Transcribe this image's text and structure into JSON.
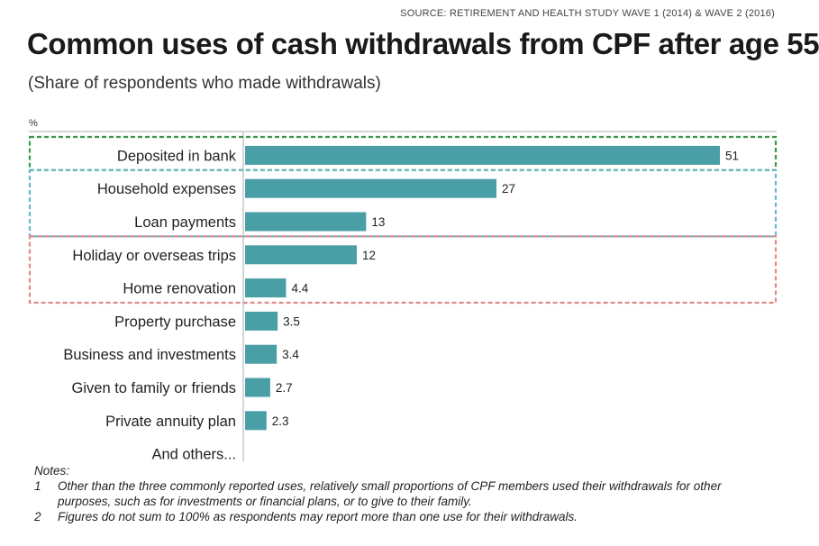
{
  "source": "SOURCE: RETIREMENT AND HEALTH STUDY WAVE 1 (2014) & WAVE 2 (2016)",
  "title": "Common uses of cash withdrawals from CPF after age 55",
  "subtitle": "(Share of respondents who made withdrawals)",
  "unit_label": "%",
  "chart_data": {
    "type": "bar",
    "orientation": "horizontal",
    "categories": [
      "Deposited in bank",
      "Household expenses",
      "Loan payments",
      "Holiday or overseas trips",
      "Home renovation",
      "Property purchase",
      "Business and investments",
      "Given to family or friends",
      "Private annuity plan",
      "And others..."
    ],
    "values": [
      51,
      27,
      13,
      12,
      4.4,
      3.5,
      3.4,
      2.7,
      2.3,
      null
    ],
    "value_labels": [
      "51",
      "27",
      "13",
      "12",
      "4.4",
      "3.5",
      "3.4",
      "2.7",
      "2.3",
      ""
    ],
    "bar_color": "#4a9ea6",
    "xlim": [
      0,
      51
    ],
    "grid": false,
    "highlight_groups": [
      {
        "start": 0,
        "end": 0,
        "color": "#3a9a4a"
      },
      {
        "start": 1,
        "end": 2,
        "color": "#6ab8c8"
      },
      {
        "start": 3,
        "end": 4,
        "color": "#e08c8c"
      }
    ]
  },
  "notes": {
    "heading": "Notes:",
    "items": [
      {
        "num": "1",
        "text": "Other than the three commonly reported uses, relatively small proportions of CPF members used their withdrawals for other purposes, such as for investments or financial plans, or to give to their family."
      },
      {
        "num": "2",
        "text": "Figures do not sum to 100% as respondents may report more than one use for their withdrawals."
      }
    ]
  }
}
